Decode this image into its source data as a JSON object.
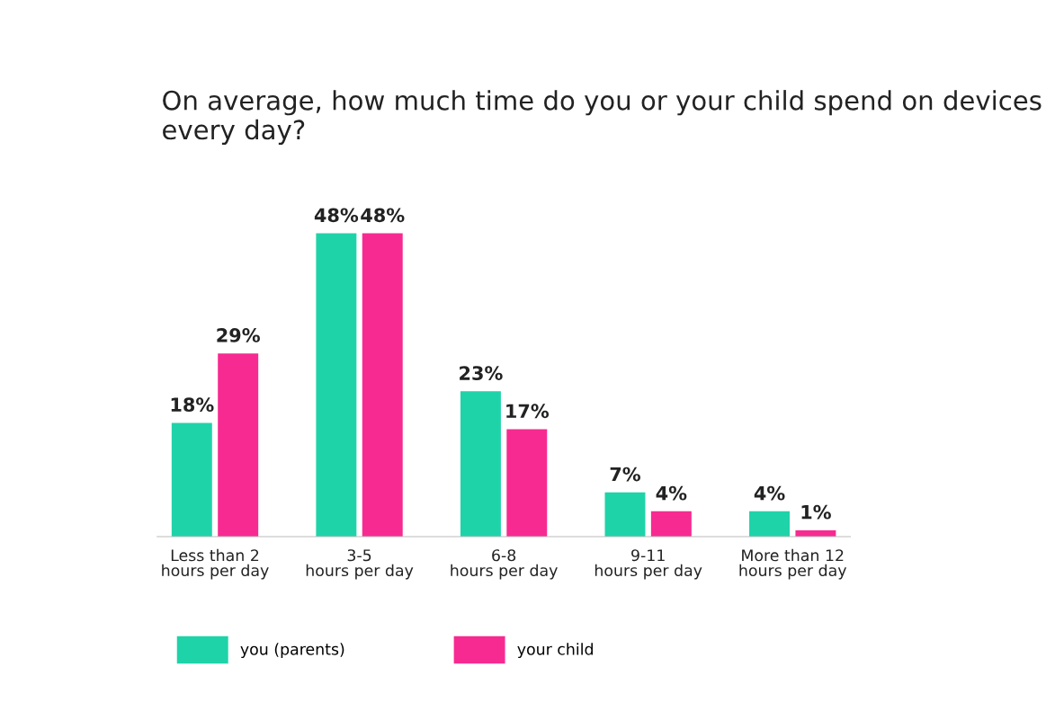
{
  "chart_data": {
    "type": "bar",
    "title": "On average, how much time do you or your child spend on devices every day?",
    "categories": [
      "Less than 2\nhours per day",
      "3-5\nhours per day",
      "6-8\nhours per day",
      "9-11\nhours per day",
      "More than 12\nhours per day"
    ],
    "series": [
      {
        "name": "you (parents)",
        "color": "#1fd3a9",
        "values": [
          18,
          48,
          23,
          7,
          4
        ],
        "value_labels": [
          "18%",
          "48%",
          "23%",
          "7%",
          "4%"
        ]
      },
      {
        "name": "your child",
        "color": "#f72a91",
        "values": [
          29,
          48,
          17,
          4,
          1
        ],
        "value_labels": [
          "29%",
          "48%",
          "17%",
          "4%",
          "1%"
        ]
      }
    ],
    "legend": "bottom",
    "grid": false
  }
}
